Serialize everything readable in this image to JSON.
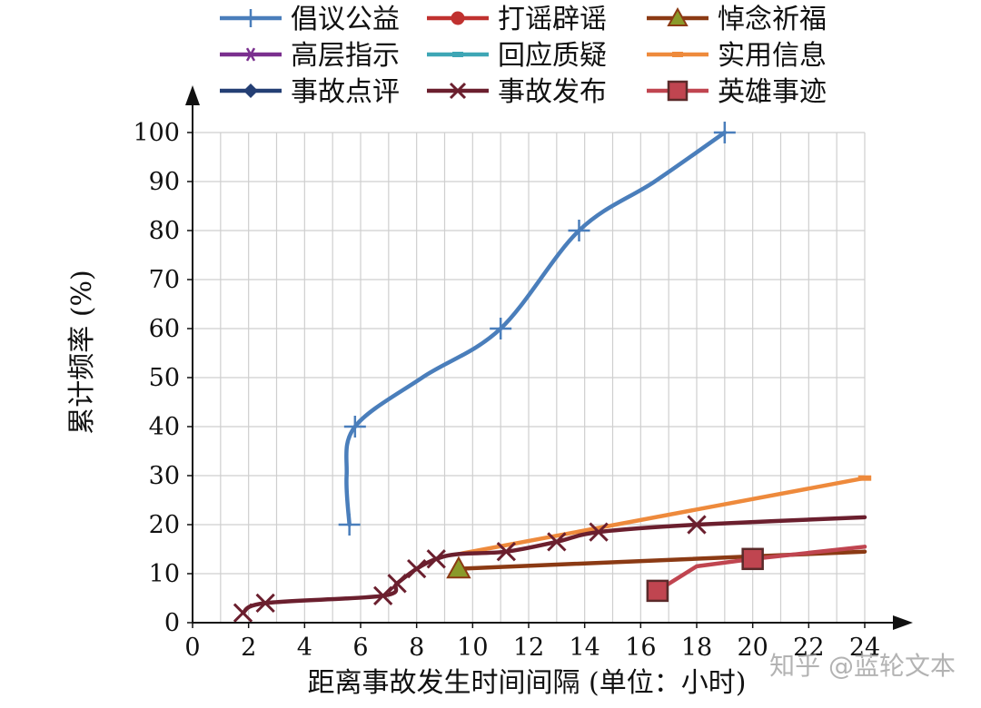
{
  "chart_data": {
    "type": "line",
    "xlabel": "距离事故发生时间间隔 (单位：小时)",
    "ylabel": "累计频率 (%)",
    "xlim": [
      0,
      24
    ],
    "ylim": [
      0,
      100
    ],
    "xticks": [
      0,
      2,
      4,
      6,
      8,
      10,
      12,
      14,
      16,
      18,
      20,
      22,
      24
    ],
    "yticks": [
      0,
      10,
      20,
      30,
      40,
      50,
      60,
      70,
      80,
      90,
      100
    ],
    "grid": true,
    "legend_position": "top",
    "series": [
      {
        "name": "倡议公益",
        "color": "#4a7ebb",
        "marker": "plus",
        "smooth": true,
        "x": [
          5.6,
          5.5,
          5.8,
          8.2,
          11.0,
          13.8,
          16.5,
          19.0
        ],
        "y": [
          20,
          30,
          40,
          50,
          60,
          80,
          90,
          100
        ],
        "marker_index": [
          0,
          2,
          4,
          5,
          7
        ]
      },
      {
        "name": "打谣辟谣",
        "color": "#c0312f",
        "marker": "circle",
        "x": [],
        "y": []
      },
      {
        "name": "悼念祈福",
        "color": "#8b3a14",
        "marker": "triangle",
        "x": [
          9.5,
          24
        ],
        "y": [
          11,
          14.5
        ],
        "marker_index": [
          0
        ]
      },
      {
        "name": "高层指示",
        "color": "#7a2f8e",
        "marker": "asterisk",
        "x": [],
        "y": []
      },
      {
        "name": "回应质疑",
        "color": "#3ea6b5",
        "marker": "dash",
        "x": [],
        "y": []
      },
      {
        "name": "实用信息",
        "color": "#ee8a3c",
        "marker": "dash",
        "x": [
          9.5,
          24
        ],
        "y": [
          14,
          29.5
        ],
        "marker_index": [
          1
        ]
      },
      {
        "name": "事故点评",
        "color": "#243f74",
        "marker": "diamond",
        "x": [],
        "y": []
      },
      {
        "name": "事故发布",
        "color": "#6b1f2e",
        "marker": "x",
        "smooth": true,
        "x": [
          1.8,
          2.6,
          6.8,
          7.3,
          8.0,
          8.7,
          9.5,
          11.2,
          13.0,
          14.5,
          18.0,
          24
        ],
        "y": [
          2,
          4,
          5.5,
          8,
          11,
          13,
          14,
          14.5,
          16.5,
          18.5,
          20,
          21.5
        ],
        "marker_index": [
          0,
          1,
          2,
          3,
          4,
          5,
          7,
          8,
          9,
          10
        ]
      },
      {
        "name": "英雄事迹",
        "color": "#c04550",
        "marker": "square",
        "x": [
          16.6,
          18.0,
          20.0,
          24
        ],
        "y": [
          6.5,
          11.5,
          13,
          15.5
        ],
        "marker_index": [
          0,
          2
        ]
      }
    ]
  },
  "watermark": "知乎 @蓝轮文本"
}
